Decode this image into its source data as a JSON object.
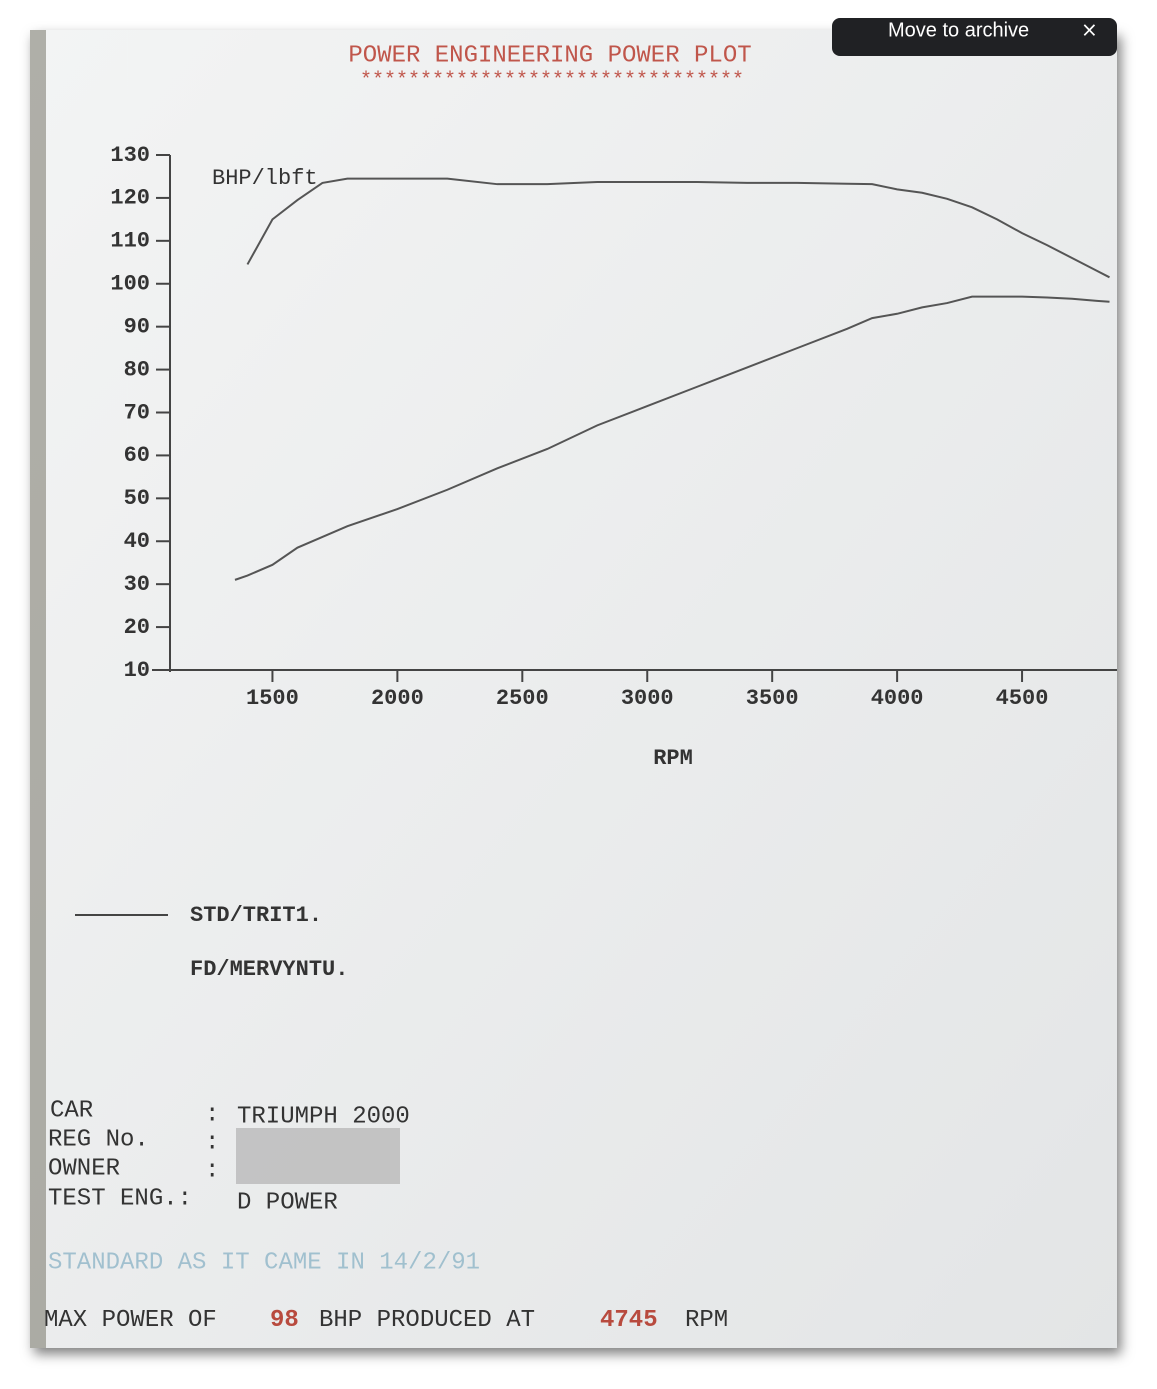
{
  "toolbar": {
    "action": "Move to archive"
  },
  "chart_data": {
    "type": "line",
    "title": "POWER ENGINEERING POWER PLOT",
    "title_underline": "********************************",
    "y_label": "BHP/lbft",
    "x_label": "RPM",
    "x": [
      1350,
      1400,
      1500,
      1600,
      1700,
      1800,
      2000,
      2200,
      2400,
      2600,
      2800,
      3000,
      3200,
      3400,
      3600,
      3800,
      3900,
      4000,
      4100,
      4200,
      4300,
      4400,
      4500,
      4600,
      4700,
      4800,
      4850
    ],
    "series": [
      {
        "color": "#555555",
        "values": [
          null,
          104.5,
          115,
          119.5,
          123.5,
          124.5,
          124.5,
          124.5,
          123.2,
          123.2,
          123.7,
          123.7,
          123.7,
          123.5,
          123.5,
          123.3,
          123.2,
          122,
          121.2,
          119.8,
          117.8,
          115,
          111.8,
          109,
          106,
          103,
          101.5
        ]
      },
      {
        "color": "#555555",
        "values": [
          31,
          32,
          34.5,
          38.5,
          41,
          43.5,
          47.5,
          52,
          57,
          61.5,
          67,
          71.5,
          76,
          80.5,
          85,
          89.5,
          92,
          93,
          94.5,
          95.5,
          97,
          97,
          97,
          96.8,
          96.5,
          96,
          95.8
        ]
      }
    ],
    "xlim": [
      1090,
      4880
    ],
    "ylim": [
      10,
      130
    ],
    "xticks": [
      1500,
      2000,
      2500,
      3000,
      3500,
      4000,
      4500
    ],
    "yticks": [
      10,
      20,
      30,
      40,
      50,
      60,
      70,
      80,
      90,
      100,
      110,
      120,
      130
    ],
    "legend_entries": [
      "STD/TRIT1.",
      "FD/MERVYNTU."
    ]
  },
  "sheet": {
    "rows": [
      [
        "CAR",
        ":",
        "TRIUMPH 2000"
      ],
      [
        "REG No.",
        ":"
      ],
      [
        "OWNER",
        ":"
      ],
      [
        "TEST ENG.:",
        "D POWER"
      ]
    ],
    "note": "STANDARD AS IT CAME IN 14/2/91",
    "summary": [
      "MAX POWER OF",
      "98",
      "BHP PRODUCED AT",
      "4745",
      "RPM"
    ]
  }
}
